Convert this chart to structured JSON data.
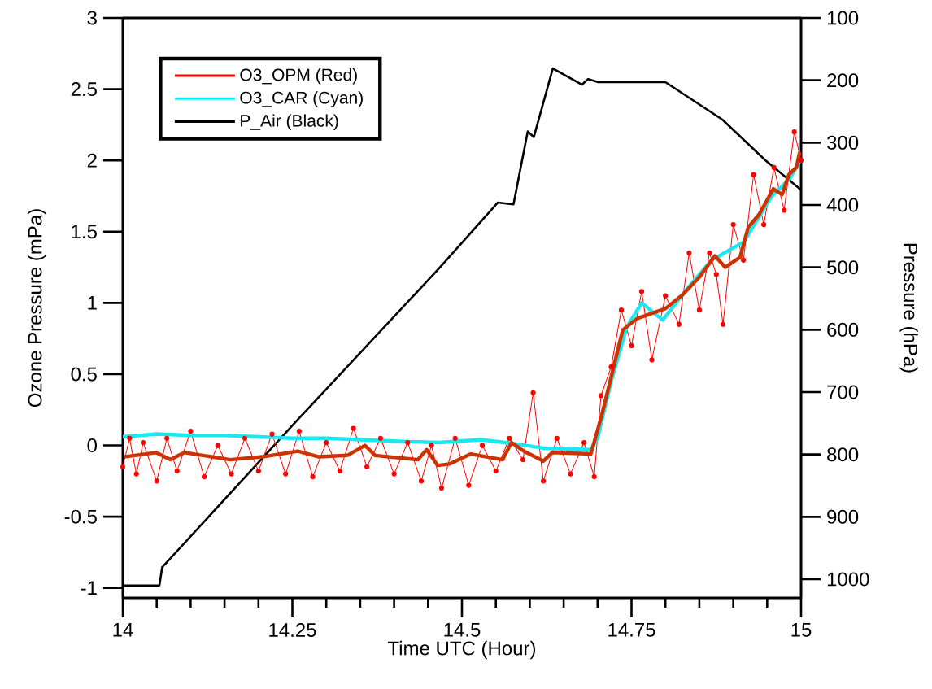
{
  "chart_data": {
    "type": "line",
    "xlabel": "Time UTC (Hour)",
    "ylabel": "Ozone Pressure (mPa)",
    "y2label": "Pressure (hPa)",
    "xlim": [
      14,
      15
    ],
    "xticks": [
      14,
      {
        "value": 14.05,
        "label": null
      },
      {
        "value": 14.1,
        "label": null
      },
      {
        "value": 14.15,
        "label": null
      },
      {
        "value": 14.2,
        "label": null
      },
      14.25,
      {
        "value": 14.3,
        "label": null
      },
      {
        "value": 14.35,
        "label": null
      },
      {
        "value": 14.4,
        "label": null
      },
      {
        "value": 14.45,
        "label": null
      },
      14.5,
      {
        "value": 14.55,
        "label": null
      },
      {
        "value": 14.6,
        "label": null
      },
      {
        "value": 14.65,
        "label": null
      },
      {
        "value": 14.7,
        "label": null
      },
      14.75,
      {
        "value": 14.8,
        "label": null
      },
      {
        "value": 14.85,
        "label": null
      },
      {
        "value": 14.9,
        "label": null
      },
      {
        "value": 14.95,
        "label": null
      },
      15
    ],
    "ylim": [
      -1.07,
      3
    ],
    "yticks": [
      -1,
      -0.5,
      0,
      0.5,
      1,
      1.5,
      2,
      2.5,
      3
    ],
    "y2lim": [
      1030,
      100
    ],
    "y2ticks": [
      100,
      200,
      300,
      400,
      500,
      600,
      700,
      800,
      900,
      1000
    ],
    "legend": "top left",
    "series": [
      {
        "name": "O3_OPM (Red)",
        "color": "#ff0000",
        "marker": "circle",
        "x": [
          14.0,
          14.01,
          14.02,
          14.03,
          14.05,
          14.065,
          14.08,
          14.1,
          14.12,
          14.14,
          14.16,
          14.18,
          14.2,
          14.22,
          14.24,
          14.26,
          14.28,
          14.3,
          14.32,
          14.34,
          14.36,
          14.38,
          14.4,
          14.42,
          14.44,
          14.455,
          14.47,
          14.49,
          14.51,
          14.53,
          14.55,
          14.57,
          14.59,
          14.605,
          14.62,
          14.64,
          14.66,
          14.68,
          14.695,
          14.705,
          14.72,
          14.735,
          14.75,
          14.765,
          14.78,
          14.8,
          14.82,
          14.835,
          14.85,
          14.865,
          14.875,
          14.885,
          14.9,
          14.915,
          14.93,
          14.945,
          14.96,
          14.975,
          14.99,
          15.0
        ],
        "values": [
          -0.15,
          0.05,
          -0.2,
          0.02,
          -0.25,
          0.05,
          -0.18,
          0.1,
          -0.22,
          0.0,
          -0.2,
          0.05,
          -0.18,
          0.08,
          -0.2,
          0.1,
          -0.22,
          0.02,
          -0.18,
          0.12,
          -0.15,
          0.05,
          -0.2,
          0.02,
          -0.25,
          0.0,
          -0.3,
          0.05,
          -0.28,
          0.0,
          -0.18,
          0.05,
          -0.1,
          0.37,
          -0.25,
          0.05,
          -0.2,
          0.02,
          -0.22,
          0.35,
          0.55,
          0.95,
          0.7,
          1.08,
          0.6,
          1.05,
          0.85,
          1.35,
          0.95,
          1.35,
          1.2,
          0.85,
          1.55,
          1.3,
          1.9,
          1.55,
          1.95,
          1.65,
          2.2,
          2.0
        ]
      },
      {
        "name": "O3_CAR (Cyan)",
        "color": "#19e8f0",
        "x": [
          14.0,
          14.05,
          14.1,
          14.15,
          14.2,
          14.25,
          14.3,
          14.35,
          14.4,
          14.466,
          14.528,
          14.58,
          14.622,
          14.69,
          14.7,
          14.72,
          14.743,
          14.765,
          14.796,
          14.832,
          14.868,
          14.916,
          14.931,
          14.957,
          14.983,
          15.0
        ],
        "values": [
          0.06,
          0.08,
          0.07,
          0.07,
          0.06,
          0.05,
          0.05,
          0.04,
          0.03,
          0.02,
          0.04,
          0.01,
          -0.02,
          -0.03,
          0.05,
          0.45,
          0.83,
          1.0,
          0.88,
          1.1,
          1.3,
          1.43,
          1.55,
          1.75,
          1.87,
          2.01
        ]
      },
      {
        "color": "#cc3300",
        "x": [
          14.002,
          14.049,
          14.07,
          14.091,
          14.158,
          14.206,
          14.258,
          14.289,
          14.331,
          14.357,
          14.372,
          14.435,
          14.448,
          14.464,
          14.482,
          14.513,
          14.56,
          14.573,
          14.591,
          14.62,
          14.633,
          14.69,
          14.706,
          14.737,
          14.758,
          14.8,
          14.826,
          14.85,
          14.873,
          14.888,
          14.91,
          14.922,
          14.938,
          14.959,
          14.972,
          14.982,
          14.993,
          14.998
        ],
        "values": [
          -0.08,
          -0.05,
          -0.1,
          -0.05,
          -0.1,
          -0.08,
          -0.04,
          -0.08,
          -0.07,
          0.0,
          -0.07,
          -0.1,
          -0.03,
          -0.14,
          -0.13,
          -0.06,
          -0.1,
          0.02,
          -0.04,
          -0.11,
          -0.05,
          -0.06,
          0.21,
          0.81,
          0.89,
          0.96,
          1.06,
          1.18,
          1.33,
          1.25,
          1.32,
          1.53,
          1.62,
          1.8,
          1.76,
          1.9,
          1.95,
          2.06
        ]
      },
      {
        "name": "P_Air (Black)",
        "color": "#000000",
        "axis": "y2",
        "x": [
          14.0,
          14.054,
          14.058,
          14.259,
          14.466,
          14.553,
          14.576,
          14.597,
          14.606,
          14.634,
          14.677,
          14.686,
          14.701,
          14.8,
          14.884,
          14.947,
          15.0
        ],
        "values": [
          1010,
          1010,
          981,
          743,
          502,
          396,
          399,
          282,
          291,
          181,
          207,
          198,
          203,
          203,
          263,
          328,
          376
        ]
      }
    ]
  }
}
